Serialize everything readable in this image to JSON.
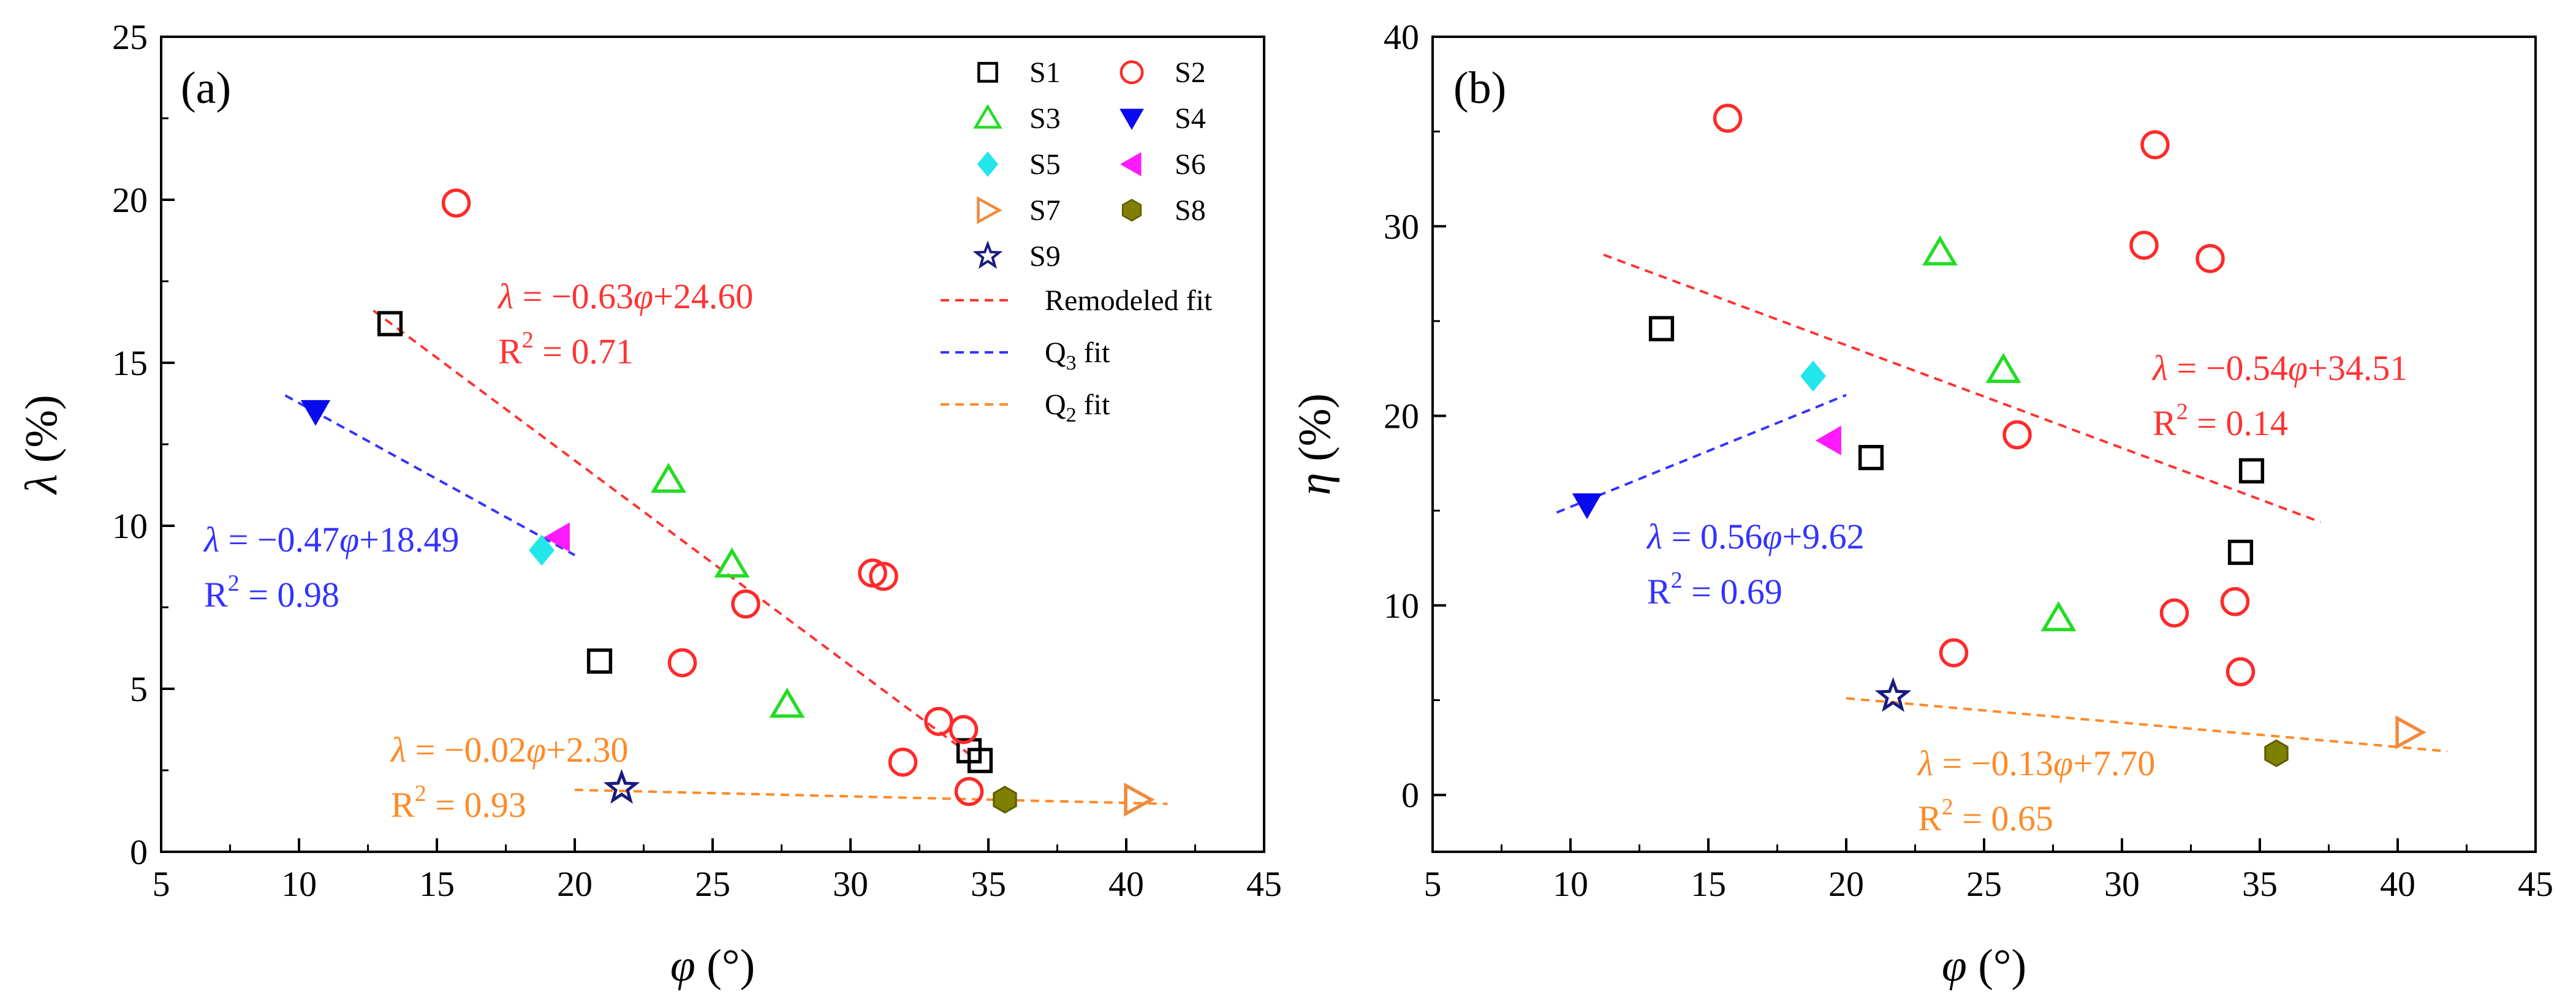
{
  "chart_data": [
    {
      "type": "scatter",
      "panel_label": "(a)",
      "xlabel": {
        "sym": "φ",
        "unit": "(°)"
      },
      "ylabel": {
        "sym": "λ",
        "unit": "(%)"
      },
      "xlim": [
        5,
        45
      ],
      "ylim": [
        0,
        25
      ],
      "xticks": [
        "5",
        "10",
        "15",
        "20",
        "25",
        "30",
        "35",
        "40",
        "45"
      ],
      "yticks": [
        "0",
        "5",
        "10",
        "15",
        "20",
        "25"
      ],
      "series": [
        {
          "name": "S1",
          "points": [
            [
              13.3,
              16.2
            ],
            [
              20.9,
              5.85
            ],
            [
              34.3,
              3.1
            ],
            [
              34.7,
              2.8
            ]
          ]
        },
        {
          "name": "S2",
          "points": [
            [
              15.7,
              19.9
            ],
            [
              23.9,
              5.8
            ],
            [
              26.2,
              7.6
            ],
            [
              30.8,
              8.55
            ],
            [
              31.2,
              8.45
            ],
            [
              33.2,
              4.0
            ],
            [
              34.1,
              3.75
            ],
            [
              31.9,
              2.75
            ],
            [
              34.3,
              1.85
            ]
          ]
        },
        {
          "name": "S3",
          "points": [
            [
              23.4,
              11.4
            ],
            [
              25.7,
              8.8
            ],
            [
              27.7,
              4.5
            ]
          ]
        },
        {
          "name": "S4",
          "points": [
            [
              10.6,
              13.5
            ]
          ]
        },
        {
          "name": "S5",
          "points": [
            [
              18.8,
              9.25
            ]
          ]
        },
        {
          "name": "S6",
          "points": [
            [
              19.4,
              9.65
            ]
          ]
        },
        {
          "name": "S7",
          "points": [
            [
              40.4,
              1.6
            ]
          ]
        },
        {
          "name": "S8",
          "points": [
            [
              35.6,
              1.6
            ]
          ]
        },
        {
          "name": "S9",
          "points": [
            [
              21.7,
              1.95
            ]
          ]
        }
      ],
      "fits": [
        {
          "name": "Remodeled fit",
          "color": "#ff3333",
          "x": [
            12.7,
            34.3
          ],
          "y": [
            16.6,
            3.0
          ]
        },
        {
          "name": "Q3 fit",
          "color": "#3333ff",
          "x": [
            9.5,
            20.0
          ],
          "y": [
            14.0,
            9.1
          ]
        },
        {
          "name": "Q2 fit",
          "color": "#ff8a26",
          "x": [
            20.0,
            41.5
          ],
          "y": [
            1.9,
            1.47
          ]
        }
      ],
      "annotations": [
        {
          "key": "remodeled",
          "eq_lhs": "λ",
          "eq_rhs": " = −0.63",
          "eq_var": "φ",
          "eq_tail": "+24.60",
          "r2_pre": "R",
          "r2_sup": "2",
          "r2_val": " = 0.71",
          "color": "#ff3333"
        },
        {
          "key": "q3",
          "eq_lhs": "λ",
          "eq_rhs": " = −0.47",
          "eq_var": "φ",
          "eq_tail": "+18.49",
          "r2_pre": "R",
          "r2_sup": "2",
          "r2_val": " = 0.98",
          "color": "#3333ff"
        },
        {
          "key": "q2",
          "eq_lhs": "λ",
          "eq_rhs": " = −0.02",
          "eq_var": "φ",
          "eq_tail": "+2.30",
          "r2_pre": "R",
          "r2_sup": "2",
          "r2_val": " = 0.93",
          "color": "#ff8a26"
        }
      ],
      "legend": {
        "position": "top-right",
        "entries": [
          {
            "label": "S1"
          },
          {
            "label": "S2"
          },
          {
            "label": "S3"
          },
          {
            "label": "S4"
          },
          {
            "label": "S5"
          },
          {
            "label": "S6"
          },
          {
            "label": "S7"
          },
          {
            "label": "S8"
          },
          {
            "label": "S9"
          }
        ],
        "lines": [
          {
            "label": "Remodeled fit"
          },
          {
            "label": "Q",
            "sub": "3",
            "tail": " fit"
          },
          {
            "label": "Q",
            "sub": "2",
            "tail": " fit"
          }
        ]
      }
    },
    {
      "type": "scatter",
      "panel_label": "(b)",
      "xlabel": {
        "sym": "φ",
        "unit": "(°)"
      },
      "ylabel": {
        "sym": "η",
        "unit": "(%)"
      },
      "xlim": [
        5,
        45
      ],
      "ylim": [
        -3,
        40
      ],
      "xticks": [
        "5",
        "10",
        "15",
        "20",
        "25",
        "30",
        "35",
        "40",
        "45"
      ],
      "yticks": [
        "0",
        "10",
        "20",
        "30",
        "40"
      ],
      "series": [
        {
          "name": "S1",
          "points": [
            [
              13.3,
              24.6
            ],
            [
              20.9,
              17.8
            ],
            [
              34.7,
              17.1
            ],
            [
              34.3,
              12.8
            ]
          ]
        },
        {
          "name": "S2",
          "points": [
            [
              15.7,
              35.7
            ],
            [
              31.2,
              34.3
            ],
            [
              30.8,
              29.0
            ],
            [
              33.2,
              28.3
            ],
            [
              26.2,
              19.0
            ],
            [
              31.9,
              9.6
            ],
            [
              34.1,
              10.2
            ],
            [
              34.3,
              6.5
            ],
            [
              23.9,
              7.5
            ]
          ]
        },
        {
          "name": "S3",
          "points": [
            [
              23.4,
              28.6
            ],
            [
              25.7,
              22.4
            ],
            [
              27.7,
              9.3
            ]
          ]
        },
        {
          "name": "S4",
          "points": [
            [
              10.6,
              15.3
            ]
          ]
        },
        {
          "name": "S5",
          "points": [
            [
              18.8,
              22.1
            ]
          ]
        },
        {
          "name": "S6",
          "points": [
            [
              19.4,
              18.7
            ]
          ]
        },
        {
          "name": "S7",
          "points": [
            [
              40.4,
              3.3
            ]
          ]
        },
        {
          "name": "S8",
          "points": [
            [
              35.6,
              2.2
            ]
          ]
        },
        {
          "name": "S9",
          "points": [
            [
              21.7,
              5.2
            ]
          ]
        }
      ],
      "fits": [
        {
          "name": "Remodeled fit",
          "color": "#ff3333",
          "x": [
            11.2,
            37.2
          ],
          "y": [
            28.5,
            14.4
          ]
        },
        {
          "name": "Q3 fit",
          "color": "#3333ff",
          "x": [
            9.5,
            20.0
          ],
          "y": [
            14.9,
            21.1
          ]
        },
        {
          "name": "Q2 fit",
          "color": "#ff8a26",
          "x": [
            20.0,
            41.8
          ],
          "y": [
            5.1,
            2.3
          ]
        }
      ],
      "annotations": [
        {
          "key": "remodeled",
          "eq_lhs": "λ",
          "eq_rhs": " = −0.54",
          "eq_var": "φ",
          "eq_tail": "+34.51",
          "r2_pre": "R",
          "r2_sup": "2",
          "r2_val": " = 0.14",
          "color": "#ff3333"
        },
        {
          "key": "q3",
          "eq_lhs": "λ",
          "eq_rhs": " = 0.56",
          "eq_var": "φ",
          "eq_tail": "+9.62",
          "r2_pre": "R",
          "r2_sup": "2",
          "r2_val": " = 0.69",
          "color": "#3333ff"
        },
        {
          "key": "q2",
          "eq_lhs": "λ",
          "eq_rhs": " = −0.13",
          "eq_var": "φ",
          "eq_tail": "+7.70",
          "r2_pre": "R",
          "r2_sup": "2",
          "r2_val": " = 0.65",
          "color": "#ff8a26"
        }
      ]
    }
  ],
  "styles": {
    "S1": {
      "shape": "square",
      "color": "#000000"
    },
    "S2": {
      "shape": "circle",
      "color": "#ff2a2a"
    },
    "S3": {
      "shape": "triangle-up",
      "color": "#22dd22"
    },
    "S4": {
      "shape": "triangle-down",
      "color": "#0a0aee"
    },
    "S5": {
      "shape": "diamond",
      "color": "#22e6ea"
    },
    "S6": {
      "shape": "triangle-left",
      "color": "#ff1aff"
    },
    "S7": {
      "shape": "triangle-right",
      "color": "#f08a3c"
    },
    "S8": {
      "shape": "hexagon",
      "color": "#808000"
    },
    "S9": {
      "shape": "star",
      "color": "#1a1a80"
    }
  }
}
